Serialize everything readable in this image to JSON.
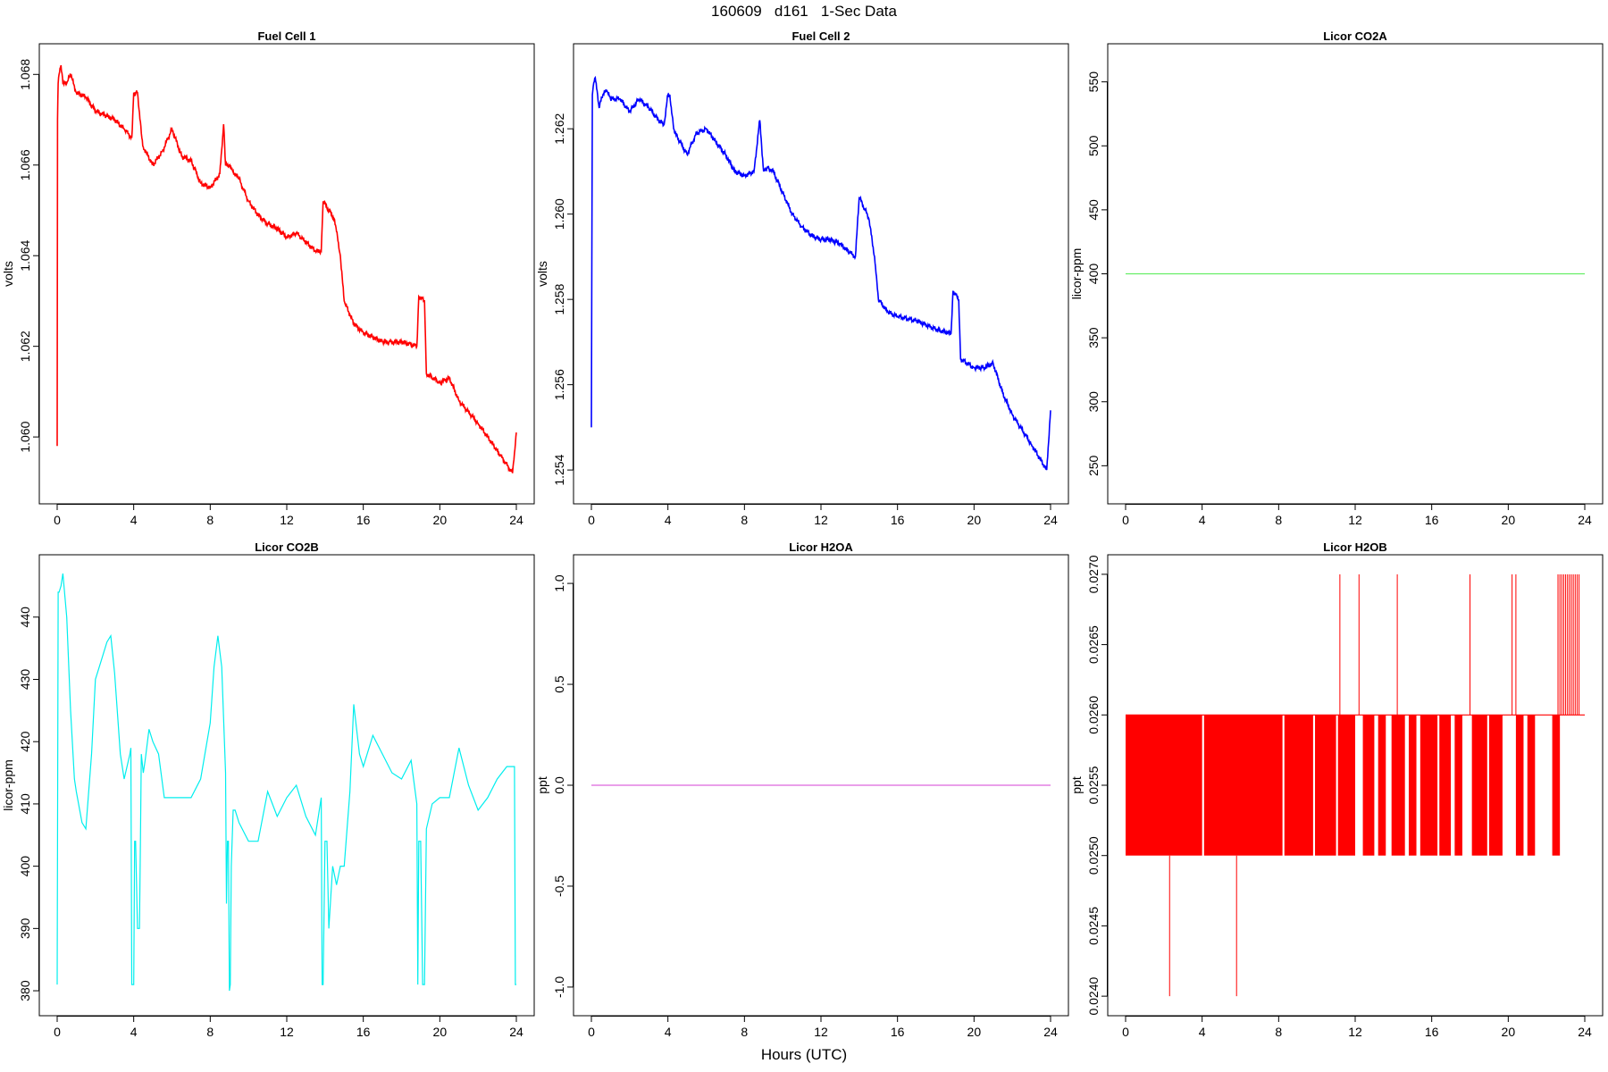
{
  "figure": {
    "title": "160609   d161   1-Sec Data",
    "shared_xlabel": "Hours (UTC)"
  },
  "chart_data": [
    {
      "type": "line",
      "title": "Fuel Cell 1",
      "ylabel": "volts",
      "color": "#ff0000",
      "xlim": [
        0,
        24
      ],
      "ylim": [
        1.0588,
        1.0684
      ],
      "xticks": [
        "0",
        "4",
        "8",
        "12",
        "16",
        "20",
        "24"
      ],
      "yticks": [
        "1.060",
        "1.062",
        "1.064",
        "1.066",
        "1.068"
      ],
      "series": [
        {
          "x": [
            0.0,
            0.02,
            0.05,
            0.1,
            0.2,
            0.3,
            0.5,
            0.7,
            1.0,
            1.5,
            2.0,
            2.5,
            3.0,
            3.5,
            3.9,
            4.0,
            4.2,
            4.4,
            4.5,
            5.0,
            5.5,
            6.0,
            6.5,
            7.0,
            7.5,
            8.0,
            8.5,
            8.7,
            8.8,
            9.0,
            9.1,
            9.5,
            10.0,
            10.5,
            11.0,
            11.5,
            12.0,
            12.5,
            13.0,
            13.5,
            13.8,
            13.9,
            14.5,
            14.8,
            15.0,
            15.5,
            16.0,
            17.0,
            18.0,
            18.8,
            18.9,
            19.2,
            19.3,
            20.0,
            20.5,
            21.0,
            22.0,
            23.0,
            23.8,
            24.0
          ],
          "y": [
            1.0598,
            1.067,
            1.0678,
            1.068,
            1.0682,
            1.0678,
            1.0678,
            1.068,
            1.0676,
            1.0675,
            1.0672,
            1.0671,
            1.067,
            1.0668,
            1.0666,
            1.0676,
            1.0676,
            1.0667,
            1.0664,
            1.066,
            1.0663,
            1.0668,
            1.0662,
            1.0661,
            1.0656,
            1.0655,
            1.0658,
            1.0669,
            1.066,
            1.066,
            1.0659,
            1.0657,
            1.0652,
            1.0649,
            1.0647,
            1.0646,
            1.0644,
            1.0645,
            1.0643,
            1.0641,
            1.0641,
            1.0652,
            1.0648,
            1.064,
            1.063,
            1.0625,
            1.0623,
            1.0621,
            1.0621,
            1.062,
            1.0631,
            1.063,
            1.0614,
            1.0612,
            1.0613,
            1.0608,
            1.0603,
            1.0597,
            1.0592,
            1.0601
          ]
        }
      ]
    },
    {
      "type": "line",
      "title": "Fuel Cell 2",
      "ylabel": "volts",
      "color": "#0000ff",
      "xlim": [
        0,
        24
      ],
      "ylim": [
        1.2535,
        1.2637
      ],
      "xticks": [
        "0",
        "4",
        "8",
        "12",
        "16",
        "20",
        "24"
      ],
      "yticks": [
        "1.254",
        "1.256",
        "1.258",
        "1.260",
        "1.262"
      ],
      "series": [
        {
          "x": [
            0.0,
            0.05,
            0.1,
            0.2,
            0.4,
            0.6,
            0.8,
            1.0,
            1.5,
            2.0,
            2.5,
            3.0,
            3.5,
            3.8,
            4.0,
            4.1,
            4.3,
            4.5,
            5.0,
            5.5,
            6.0,
            6.5,
            7.0,
            7.5,
            8.0,
            8.5,
            8.8,
            9.0,
            9.2,
            9.5,
            10.0,
            10.5,
            11.0,
            11.5,
            12.0,
            12.5,
            13.0,
            13.5,
            13.8,
            14.0,
            14.5,
            14.8,
            15.0,
            15.5,
            16.0,
            17.0,
            18.0,
            18.8,
            18.9,
            19.2,
            19.3,
            20.0,
            20.5,
            21.0,
            21.5,
            22.0,
            23.0,
            23.8,
            24.0
          ],
          "y": [
            1.255,
            1.2628,
            1.263,
            1.2632,
            1.2625,
            1.2628,
            1.2629,
            1.2627,
            1.2627,
            1.2624,
            1.2627,
            1.2625,
            1.2622,
            1.2621,
            1.2628,
            1.2628,
            1.262,
            1.2618,
            1.2614,
            1.2619,
            1.262,
            1.2617,
            1.2614,
            1.261,
            1.2609,
            1.261,
            1.2622,
            1.261,
            1.2611,
            1.261,
            1.2605,
            1.26,
            1.2597,
            1.2595,
            1.2594,
            1.2594,
            1.2593,
            1.2591,
            1.259,
            1.2604,
            1.2599,
            1.259,
            1.258,
            1.2577,
            1.2576,
            1.2575,
            1.2573,
            1.2572,
            1.2582,
            1.258,
            1.2566,
            1.2564,
            1.2564,
            1.2565,
            1.2558,
            1.2553,
            1.2546,
            1.254,
            1.2554
          ]
        }
      ]
    },
    {
      "type": "line",
      "title": "Licor CO2A",
      "ylabel": "licor-ppm",
      "color": "#66ee66",
      "xlim": [
        0,
        24
      ],
      "ylim": [
        230,
        570
      ],
      "xticks": [
        "0",
        "4",
        "8",
        "12",
        "16",
        "20",
        "24"
      ],
      "yticks": [
        "250",
        "300",
        "350",
        "400",
        "450",
        "500",
        "550"
      ],
      "series": [
        {
          "x": [
            0,
            24
          ],
          "y": [
            400,
            400
          ]
        }
      ]
    },
    {
      "type": "line",
      "title": "Licor CO2B",
      "ylabel": "licor-ppm",
      "color": "#00eeee",
      "xlim": [
        0,
        24
      ],
      "ylim": [
        378,
        448
      ],
      "xticks": [
        "0",
        "4",
        "8",
        "12",
        "16",
        "20",
        "24"
      ],
      "yticks": [
        "380",
        "390",
        "400",
        "410",
        "420",
        "430",
        "440"
      ],
      "series": [
        {
          "x": [
            0.0,
            0.05,
            0.1,
            0.2,
            0.3,
            0.5,
            0.7,
            0.9,
            1.0,
            1.3,
            1.5,
            1.8,
            2.0,
            2.3,
            2.6,
            2.8,
            3.0,
            3.3,
            3.5,
            3.8,
            3.85,
            3.9,
            4.0,
            4.05,
            4.1,
            4.2,
            4.3,
            4.35,
            4.4,
            4.5,
            4.6,
            4.8,
            5.0,
            5.3,
            5.6,
            6.0,
            6.5,
            7.0,
            7.5,
            8.0,
            8.2,
            8.4,
            8.6,
            8.8,
            8.85,
            8.9,
            8.95,
            9.0,
            9.05,
            9.1,
            9.2,
            9.3,
            9.5,
            10.0,
            10.5,
            11.0,
            11.5,
            12.0,
            12.5,
            13.0,
            13.5,
            13.8,
            13.85,
            13.9,
            14.0,
            14.1,
            14.2,
            14.4,
            14.6,
            14.8,
            15.0,
            15.3,
            15.5,
            15.8,
            16.0,
            16.5,
            17.0,
            17.5,
            18.0,
            18.5,
            18.8,
            18.85,
            18.9,
            19.0,
            19.1,
            19.2,
            19.3,
            19.6,
            20.0,
            20.5,
            21.0,
            21.5,
            22.0,
            22.5,
            23.0,
            23.5,
            23.9,
            23.95,
            24.0
          ],
          "y": [
            381,
            444,
            444,
            445,
            447,
            440,
            425,
            414,
            412,
            407,
            406,
            418,
            430,
            433,
            436,
            437,
            431,
            418,
            414,
            418,
            419,
            381,
            381,
            404,
            404,
            390,
            390,
            404,
            418,
            415,
            417,
            422,
            420,
            418,
            411,
            411,
            411,
            411,
            414,
            423,
            432,
            437,
            432,
            415,
            394,
            404,
            404,
            380,
            381,
            400,
            409,
            409,
            407,
            404,
            404,
            412,
            408,
            411,
            413,
            408,
            405,
            411,
            381,
            381,
            404,
            404,
            390,
            400,
            397,
            400,
            400,
            412,
            426,
            418,
            416,
            421,
            418,
            415,
            414,
            417,
            410,
            381,
            404,
            404,
            381,
            381,
            406,
            410,
            411,
            411,
            419,
            413,
            409,
            411,
            414,
            416,
            416,
            381,
            381
          ]
        }
      ]
    },
    {
      "type": "line",
      "title": "Licor H2OA",
      "ylabel": "ppt",
      "color": "#dd66dd",
      "xlim": [
        0,
        24
      ],
      "ylim": [
        -1.08,
        1.08
      ],
      "xticks": [
        "0",
        "4",
        "8",
        "12",
        "16",
        "20",
        "24"
      ],
      "yticks": [
        "-1.0",
        "-0.5",
        "0.0",
        "0.5",
        "1.0"
      ],
      "series": [
        {
          "x": [
            0,
            24
          ],
          "y": [
            0,
            0
          ]
        }
      ]
    },
    {
      "type": "line",
      "title": "Licor H2OB",
      "ylabel": "ppt",
      "color": "#ff0000",
      "xlim": [
        0,
        24
      ],
      "ylim": [
        0.02395,
        0.02705
      ],
      "xticks": [
        "0",
        "4",
        "8",
        "12",
        "16",
        "20",
        "24"
      ],
      "yticks": [
        "0.0240",
        "0.0245",
        "0.0250",
        "0.0255",
        "0.0260",
        "0.0265",
        "0.0270"
      ],
      "bands": [
        [
          0.0,
          4.0
        ],
        [
          4.1,
          8.2
        ],
        [
          8.3,
          9.8
        ],
        [
          9.9,
          11.0
        ],
        [
          11.1,
          12.0
        ],
        [
          12.4,
          13.0
        ],
        [
          13.2,
          13.6
        ],
        [
          13.9,
          14.6
        ],
        [
          14.8,
          15.2
        ],
        [
          15.4,
          16.3
        ],
        [
          16.4,
          17.0
        ],
        [
          17.2,
          17.6
        ],
        [
          18.1,
          18.9
        ],
        [
          19.0,
          19.7
        ],
        [
          20.4,
          20.8
        ],
        [
          21.0,
          21.4
        ],
        [
          22.3,
          22.7
        ]
      ],
      "spikes_up": [
        11.2,
        12.2,
        14.2,
        18.0,
        20.2,
        20.4,
        22.6,
        22.7,
        22.8,
        22.9,
        23.0,
        23.1,
        23.2,
        23.3,
        23.4,
        23.5,
        23.6,
        23.7
      ],
      "spikes_down": [
        2.3,
        5.8
      ],
      "base_level": 0.026,
      "low_level": 0.025,
      "spike_high": 0.027,
      "spike_low": 0.024
    }
  ]
}
